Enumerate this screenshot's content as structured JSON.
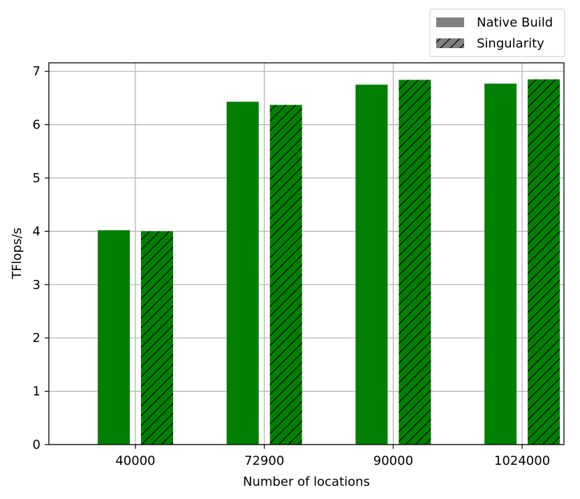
{
  "chart_data": {
    "type": "bar",
    "categories": [
      "40000",
      "72900",
      "90000",
      "1024000"
    ],
    "series": [
      {
        "name": "Native Build",
        "values": [
          4.02,
          6.43,
          6.75,
          6.77
        ],
        "color": "#008000",
        "hatch": false
      },
      {
        "name": "Singularity",
        "values": [
          4.0,
          6.37,
          6.84,
          6.85
        ],
        "color": "#008000",
        "hatch": true
      }
    ],
    "legend_swatch_color": "#808080",
    "xlabel": "Number of locations",
    "ylabel": "TFlops/s",
    "yticks": [
      "0",
      "1",
      "2",
      "3",
      "4",
      "5",
      "6",
      "7"
    ],
    "ylim": [
      0,
      7.0
    ],
    "grid": true,
    "legend_position": "top-right, above plot"
  }
}
